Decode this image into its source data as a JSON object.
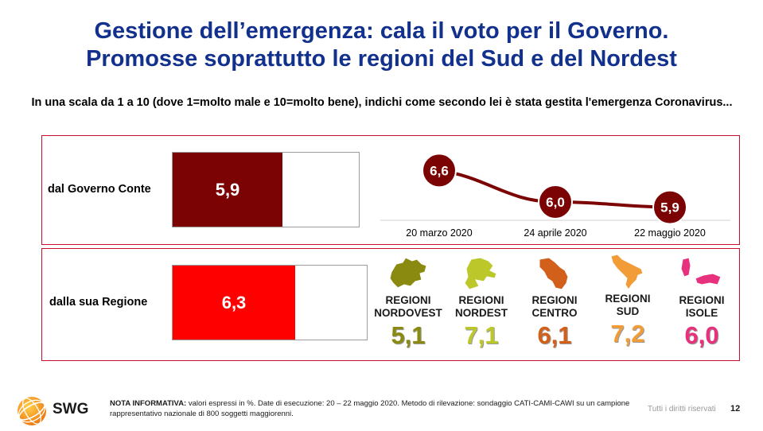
{
  "title_line1": "Gestione dell’emergenza: cala il voto per il Governo.",
  "title_line2": "Promosse soprattutto le regioni del Sud e del Nordest",
  "question": "In una scala da 1 a 10 (dove 1=molto male e 10=molto bene), indichi come secondo lei è stata gestita l'emergenza Coronavirus...",
  "chart_data": [
    {
      "type": "bar",
      "categories": [
        "dal Governo Conte",
        "dalla sua Regione"
      ],
      "values": [
        5.9,
        6.3
      ],
      "value_labels": [
        "5,9",
        "6,3"
      ],
      "xlim": [
        0,
        10
      ],
      "colors": [
        "#7b0303",
        "#ff0000"
      ]
    },
    {
      "type": "line",
      "x": [
        "20 marzo 2020",
        "24 aprile 2020",
        "22 maggio 2020"
      ],
      "series": [
        {
          "values": [
            6.6,
            6.0,
            5.9
          ],
          "value_labels": [
            "6,6",
            "6,0",
            "5,9"
          ]
        }
      ],
      "ylim": [
        5.0,
        7.0
      ],
      "color": "#7b0303"
    },
    {
      "type": "table",
      "categories": [
        "REGIONI NORDOVEST",
        "REGIONI NORDEST",
        "REGIONI CENTRO",
        "REGIONI SUD",
        "REGIONI ISOLE"
      ],
      "values": [
        5.1,
        7.1,
        6.1,
        7.2,
        6.0
      ],
      "value_labels": [
        "5,1",
        "7,1",
        "6,1",
        "7,2",
        "6,0"
      ],
      "colors": [
        "#8a8a10",
        "#bcc82a",
        "#d2601a",
        "#f29c38",
        "#e8317c"
      ]
    }
  ],
  "regions": [
    {
      "line1": "REGIONI",
      "line2": "NORDOVEST",
      "value": "5,1",
      "color": "#8a8a10",
      "icon": "nordovest-map-icon"
    },
    {
      "line1": "REGIONI",
      "line2": "NORDEST",
      "value": "7,1",
      "color": "#bcc82a",
      "icon": "nordest-map-icon"
    },
    {
      "line1": "REGIONI",
      "line2": "CENTRO",
      "value": "6,1",
      "color": "#d2601a",
      "icon": "centro-map-icon"
    },
    {
      "line1": "REGIONI",
      "line2": "SUD",
      "value": "7,2",
      "color": "#f29c38",
      "icon": "sud-map-icon"
    },
    {
      "line1": "REGIONI",
      "line2": "ISOLE",
      "value": "6,0",
      "color": "#e8317c",
      "icon": "isole-map-icon"
    }
  ],
  "footer": {
    "brand": "SWG",
    "note_label": "NOTA INFORMATIVA:",
    "note_text": "valori espressi in %. Date di esecuzione: 20 – 22 maggio 2020. Metodo di rilevazione: sondaggio CATI-CAMI-CAWI su un campione rappresentativo nazionale di 800 soggetti maggiorenni.",
    "rights": "Tutti i diritti riservati",
    "page": "12"
  }
}
